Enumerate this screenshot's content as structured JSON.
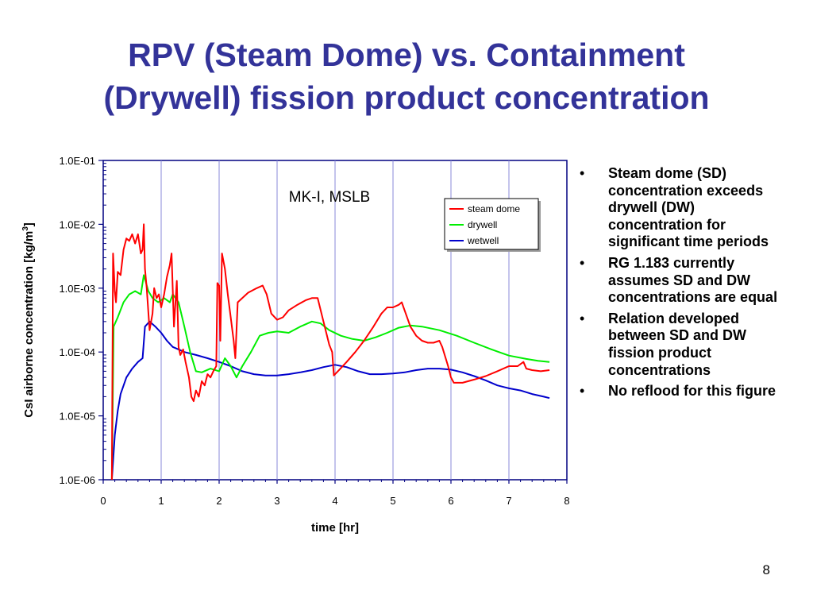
{
  "slide": {
    "title_lines": [
      "RPV (Steam Dome) vs. Containment",
      "(Drywell) fission product concentration"
    ],
    "page_number": "8",
    "bullets": [
      "Steam dome (SD) concentration exceeds drywell (DW) concentration for significant time periods",
      "RG 1.183 currently assumes SD and DW concentrations are equal",
      "Relation developed between SD and DW fission product concentrations",
      "No reflood for this figure"
    ]
  },
  "colors": {
    "title": "#333399",
    "axis": "#000080",
    "grid": "#8a8ad8",
    "steam_dome": "#ff0000",
    "drywell": "#00ee00",
    "wetwell": "#0000cc"
  },
  "chart_data": {
    "type": "line",
    "annotation": "MK-I, MSLB",
    "xlabel": "time [hr]",
    "ylabel_main": "CsI airborne concentration [kg/m",
    "ylabel_sup": "3",
    "ylabel_end": "]",
    "yscale": "log",
    "xlim": [
      0,
      8
    ],
    "ylim": [
      1e-06,
      0.1
    ],
    "x_ticks": [
      "0",
      "1",
      "2",
      "3",
      "4",
      "5",
      "6",
      "7",
      "8"
    ],
    "y_ticks": [
      "1.0E-06",
      "1.0E-05",
      "1.0E-04",
      "1.0E-03",
      "1.0E-02",
      "1.0E-01"
    ],
    "grid": "vertical gridlines at each hour",
    "legend_position": "top-right",
    "series": [
      {
        "name": "steam dome",
        "color_key": "steam_dome",
        "points": [
          [
            0.15,
            1e-06
          ],
          [
            0.17,
            0.0035
          ],
          [
            0.2,
            0.0009
          ],
          [
            0.22,
            0.0006
          ],
          [
            0.25,
            0.0018
          ],
          [
            0.3,
            0.0016
          ],
          [
            0.35,
            0.004
          ],
          [
            0.4,
            0.006
          ],
          [
            0.45,
            0.0055
          ],
          [
            0.5,
            0.007
          ],
          [
            0.55,
            0.005
          ],
          [
            0.6,
            0.007
          ],
          [
            0.65,
            0.0035
          ],
          [
            0.68,
            0.004
          ],
          [
            0.7,
            0.01
          ],
          [
            0.72,
            0.002
          ],
          [
            0.75,
            0.001
          ],
          [
            0.8,
            0.00022
          ],
          [
            0.85,
            0.0004
          ],
          [
            0.88,
            0.001
          ],
          [
            0.92,
            0.0007
          ],
          [
            0.96,
            0.0008
          ],
          [
            1.0,
            0.0005
          ],
          [
            1.05,
            0.0008
          ],
          [
            1.1,
            0.0015
          ],
          [
            1.15,
            0.0023
          ],
          [
            1.18,
            0.0035
          ],
          [
            1.22,
            0.00025
          ],
          [
            1.27,
            0.0013
          ],
          [
            1.3,
            0.00012
          ],
          [
            1.33,
            9e-05
          ],
          [
            1.38,
            0.00011
          ],
          [
            1.42,
            7e-05
          ],
          [
            1.48,
            4e-05
          ],
          [
            1.52,
            2e-05
          ],
          [
            1.56,
            1.7e-05
          ],
          [
            1.6,
            2.5e-05
          ],
          [
            1.65,
            2e-05
          ],
          [
            1.7,
            3.5e-05
          ],
          [
            1.75,
            3e-05
          ],
          [
            1.8,
            4.5e-05
          ],
          [
            1.85,
            4e-05
          ],
          [
            1.9,
            5e-05
          ],
          [
            1.95,
            6e-05
          ],
          [
            1.97,
            0.0012
          ],
          [
            2.0,
            0.0011
          ],
          [
            2.02,
            0.00015
          ],
          [
            2.05,
            0.0035
          ],
          [
            2.1,
            0.002
          ],
          [
            2.15,
            0.0008
          ],
          [
            2.2,
            0.00035
          ],
          [
            2.25,
            0.00015
          ],
          [
            2.28,
            8e-05
          ],
          [
            2.32,
            0.0006
          ],
          [
            2.4,
            0.0007
          ],
          [
            2.5,
            0.00085
          ],
          [
            2.65,
            0.001
          ],
          [
            2.75,
            0.0011
          ],
          [
            2.82,
            0.0008
          ],
          [
            2.9,
            0.0004
          ],
          [
            3.0,
            0.00032
          ],
          [
            3.1,
            0.00035
          ],
          [
            3.2,
            0.00045
          ],
          [
            3.35,
            0.00055
          ],
          [
            3.5,
            0.00065
          ],
          [
            3.6,
            0.0007
          ],
          [
            3.7,
            0.0007
          ],
          [
            3.8,
            0.0003
          ],
          [
            3.9,
            0.00013
          ],
          [
            3.95,
            0.0001
          ],
          [
            3.98,
            4.3e-05
          ],
          [
            4.05,
            5e-05
          ],
          [
            4.2,
            7e-05
          ],
          [
            4.35,
            0.0001
          ],
          [
            4.5,
            0.00015
          ],
          [
            4.65,
            0.00024
          ],
          [
            4.8,
            0.0004
          ],
          [
            4.9,
            0.0005
          ],
          [
            5.0,
            0.0005
          ],
          [
            5.1,
            0.00055
          ],
          [
            5.15,
            0.0006
          ],
          [
            5.2,
            0.00045
          ],
          [
            5.3,
            0.00025
          ],
          [
            5.4,
            0.00018
          ],
          [
            5.5,
            0.00015
          ],
          [
            5.6,
            0.00014
          ],
          [
            5.7,
            0.00014
          ],
          [
            5.8,
            0.00015
          ],
          [
            5.85,
            0.00012
          ],
          [
            5.95,
            6e-05
          ],
          [
            6.0,
            4e-05
          ],
          [
            6.05,
            3.3e-05
          ],
          [
            6.2,
            3.3e-05
          ],
          [
            6.4,
            3.7e-05
          ],
          [
            6.6,
            4.2e-05
          ],
          [
            6.8,
            5e-05
          ],
          [
            7.0,
            6e-05
          ],
          [
            7.15,
            6e-05
          ],
          [
            7.25,
            7e-05
          ],
          [
            7.3,
            5.5e-05
          ],
          [
            7.4,
            5.2e-05
          ],
          [
            7.55,
            5e-05
          ],
          [
            7.7,
            5.2e-05
          ]
        ]
      },
      {
        "name": "drywell",
        "color_key": "drywell",
        "points": [
          [
            0.15,
            1e-06
          ],
          [
            0.18,
            0.00025
          ],
          [
            0.25,
            0.00035
          ],
          [
            0.35,
            0.0006
          ],
          [
            0.45,
            0.0008
          ],
          [
            0.55,
            0.0009
          ],
          [
            0.65,
            0.0008
          ],
          [
            0.7,
            0.0016
          ],
          [
            0.78,
            0.0009
          ],
          [
            0.85,
            0.0007
          ],
          [
            0.95,
            0.0006
          ],
          [
            1.05,
            0.0007
          ],
          [
            1.15,
            0.0006
          ],
          [
            1.2,
            0.0008
          ],
          [
            1.3,
            0.0006
          ],
          [
            1.4,
            0.00025
          ],
          [
            1.5,
            0.0001
          ],
          [
            1.6,
            5e-05
          ],
          [
            1.7,
            4.8e-05
          ],
          [
            1.85,
            5.5e-05
          ],
          [
            2.0,
            5e-05
          ],
          [
            2.1,
            8e-05
          ],
          [
            2.2,
            6e-05
          ],
          [
            2.3,
            4e-05
          ],
          [
            2.4,
            6e-05
          ],
          [
            2.55,
            0.0001
          ],
          [
            2.7,
            0.00018
          ],
          [
            2.85,
            0.0002
          ],
          [
            3.0,
            0.00021
          ],
          [
            3.2,
            0.0002
          ],
          [
            3.4,
            0.00025
          ],
          [
            3.6,
            0.0003
          ],
          [
            3.75,
            0.00028
          ],
          [
            3.9,
            0.00022
          ],
          [
            4.1,
            0.00018
          ],
          [
            4.3,
            0.00016
          ],
          [
            4.5,
            0.00015
          ],
          [
            4.7,
            0.00017
          ],
          [
            4.9,
            0.0002
          ],
          [
            5.1,
            0.00024
          ],
          [
            5.3,
            0.00026
          ],
          [
            5.5,
            0.00025
          ],
          [
            5.8,
            0.00022
          ],
          [
            6.1,
            0.00018
          ],
          [
            6.4,
            0.00014
          ],
          [
            6.7,
            0.00011
          ],
          [
            7.0,
            8.8e-05
          ],
          [
            7.3,
            7.8e-05
          ],
          [
            7.5,
            7.3e-05
          ],
          [
            7.7,
            7e-05
          ]
        ]
      },
      {
        "name": "wetwell",
        "color_key": "wetwell",
        "points": [
          [
            0.15,
            1e-06
          ],
          [
            0.2,
            5e-06
          ],
          [
            0.25,
            1.2e-05
          ],
          [
            0.3,
            2.2e-05
          ],
          [
            0.4,
            4e-05
          ],
          [
            0.5,
            5.5e-05
          ],
          [
            0.6,
            7e-05
          ],
          [
            0.68,
            8e-05
          ],
          [
            0.72,
            0.00025
          ],
          [
            0.8,
            0.0003
          ],
          [
            0.9,
            0.00025
          ],
          [
            1.0,
            0.0002
          ],
          [
            1.1,
            0.00015
          ],
          [
            1.2,
            0.00012
          ],
          [
            1.3,
            0.00011
          ],
          [
            1.4,
            0.0001
          ],
          [
            1.6,
            9e-05
          ],
          [
            1.8,
            8e-05
          ],
          [
            2.0,
            7e-05
          ],
          [
            2.2,
            6e-05
          ],
          [
            2.4,
            5e-05
          ],
          [
            2.6,
            4.5e-05
          ],
          [
            2.8,
            4.3e-05
          ],
          [
            3.0,
            4.3e-05
          ],
          [
            3.2,
            4.5e-05
          ],
          [
            3.4,
            4.8e-05
          ],
          [
            3.6,
            5.2e-05
          ],
          [
            3.8,
            5.8e-05
          ],
          [
            4.0,
            6.3e-05
          ],
          [
            4.2,
            5.8e-05
          ],
          [
            4.4,
            5e-05
          ],
          [
            4.6,
            4.5e-05
          ],
          [
            4.8,
            4.5e-05
          ],
          [
            5.0,
            4.6e-05
          ],
          [
            5.2,
            4.8e-05
          ],
          [
            5.4,
            5.2e-05
          ],
          [
            5.6,
            5.5e-05
          ],
          [
            5.8,
            5.5e-05
          ],
          [
            6.0,
            5.3e-05
          ],
          [
            6.2,
            4.8e-05
          ],
          [
            6.4,
            4.2e-05
          ],
          [
            6.6,
            3.6e-05
          ],
          [
            6.8,
            3e-05
          ],
          [
            7.0,
            2.7e-05
          ],
          [
            7.2,
            2.5e-05
          ],
          [
            7.4,
            2.2e-05
          ],
          [
            7.6,
            2e-05
          ],
          [
            7.7,
            1.9e-05
          ]
        ]
      }
    ]
  }
}
